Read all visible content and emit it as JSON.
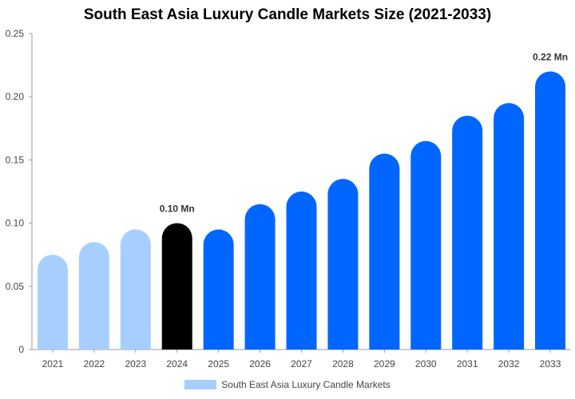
{
  "chart_data": {
    "type": "bar",
    "title": "South East Asia Luxury Candle Markets Size (2021-2033)",
    "categories": [
      "2021",
      "2022",
      "2023",
      "2024",
      "2025",
      "2026",
      "2027",
      "2028",
      "2029",
      "2030",
      "2031",
      "2032",
      "2033"
    ],
    "series": [
      {
        "name": "South East Asia Luxury Candle Markets",
        "values": [
          0.075,
          0.085,
          0.095,
          0.1,
          0.095,
          0.115,
          0.125,
          0.135,
          0.155,
          0.165,
          0.185,
          0.195,
          0.22
        ]
      }
    ],
    "bar_colors": [
      "#a6cfff",
      "#a6cfff",
      "#a6cfff",
      "#000000",
      "#0066ff",
      "#0066ff",
      "#0066ff",
      "#0066ff",
      "#0066ff",
      "#0066ff",
      "#0066ff",
      "#0066ff",
      "#0066ff"
    ],
    "data_labels": [
      {
        "category": "2024",
        "text": "0.10 Mn"
      },
      {
        "category": "2033",
        "text": "0.22 Mn"
      }
    ],
    "y_ticks": [
      "0",
      "0.05",
      "0.10",
      "0.15",
      "0.20",
      "0.25"
    ],
    "y_tick_values": [
      0,
      0.05,
      0.1,
      0.15,
      0.2,
      0.25
    ],
    "ylim": [
      0,
      0.25
    ],
    "xlabel": "",
    "ylabel": "",
    "grid": false,
    "legend_position": "bottom",
    "legend_color": "#a6cfff"
  }
}
